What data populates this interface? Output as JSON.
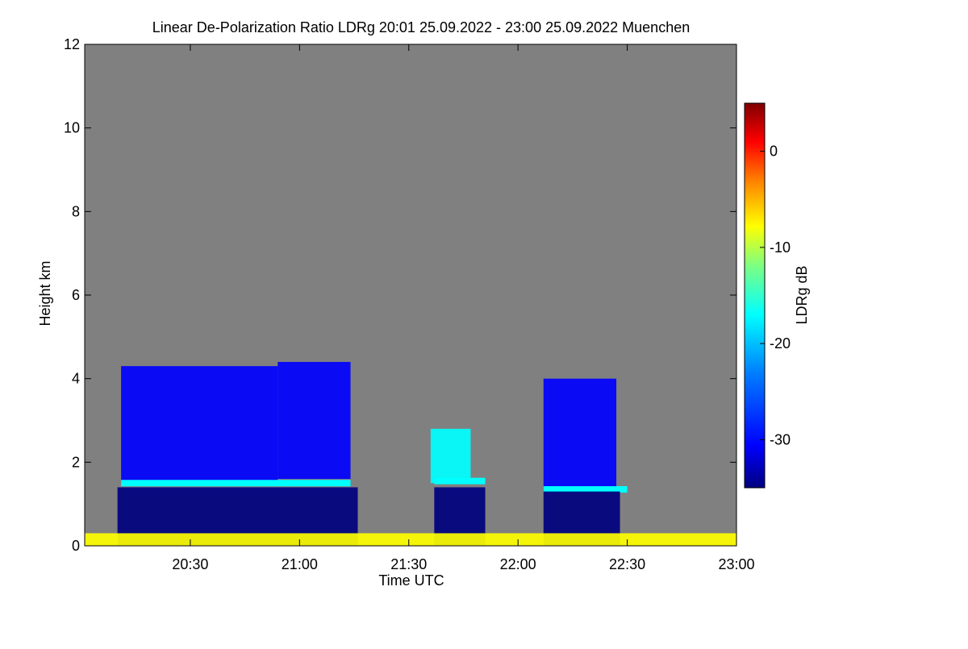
{
  "chart_data": {
    "type": "heatmap",
    "title": "Linear De-Polarization Ratio LDRg   20:01 25.09.2022 - 23:00 25.09.2022 Muenchen",
    "xlabel": "Time UTC",
    "ylabel": "Height km",
    "colorbar_label": "LDRg dB",
    "x_range_minutes_utc": [
      1201,
      1380
    ],
    "x_ticks": [
      {
        "label": "20:30",
        "value": 1230
      },
      {
        "label": "21:00",
        "value": 1260
      },
      {
        "label": "21:30",
        "value": 1290
      },
      {
        "label": "22:00",
        "value": 1320
      },
      {
        "label": "22:30",
        "value": 1350
      },
      {
        "label": "23:00",
        "value": 1380
      }
    ],
    "y_range_km": [
      0,
      12
    ],
    "y_ticks": [
      {
        "label": "0",
        "value": 0
      },
      {
        "label": "2",
        "value": 2
      },
      {
        "label": "4",
        "value": 4
      },
      {
        "label": "6",
        "value": 6
      },
      {
        "label": "8",
        "value": 8
      },
      {
        "label": "10",
        "value": 10
      },
      {
        "label": "12",
        "value": 12
      }
    ],
    "colorbar_range_db": [
      -35,
      5
    ],
    "colorbar_ticks": [
      {
        "label": "0",
        "value": 0
      },
      {
        "label": "-10",
        "value": -10
      },
      {
        "label": "-20",
        "value": -20
      },
      {
        "label": "-30",
        "value": -30
      }
    ],
    "colormap": [
      "#00007f",
      "#0000ff",
      "#007fff",
      "#00ffff",
      "#7fff7f",
      "#ffff00",
      "#ff7f00",
      "#ff0000",
      "#7f0000"
    ],
    "no_signal_color": "#808080",
    "features": [
      {
        "name": "cloud-mass-1",
        "t_start": 1211,
        "t_end": 1254,
        "h_bottom": 1.5,
        "h_top": 4.3,
        "ldr_db": -32
      },
      {
        "name": "cloud-mass-2",
        "t_start": 1254,
        "t_end": 1274,
        "h_bottom": 1.6,
        "h_top": 4.4,
        "ldr_db": -31
      },
      {
        "name": "cloud-mass-3",
        "t_start": 1327,
        "t_end": 1347,
        "h_bottom": 1.3,
        "h_top": 4.0,
        "ldr_db": -31
      },
      {
        "name": "cloud-patch-mid",
        "t_start": 1296,
        "t_end": 1307,
        "h_bottom": 1.5,
        "h_top": 2.8,
        "ldr_db": -22
      },
      {
        "name": "melting-layer-1",
        "t_start": 1211,
        "t_end": 1274,
        "height": 1.5,
        "ldr_db": -18
      },
      {
        "name": "melting-layer-2",
        "t_start": 1297,
        "t_end": 1311,
        "height": 1.55,
        "ldr_db": -18
      },
      {
        "name": "melting-layer-3",
        "t_start": 1327,
        "t_end": 1350,
        "height": 1.35,
        "ldr_db": -18
      },
      {
        "name": "precip-column-1",
        "t_start": 1210,
        "t_end": 1276,
        "h_bottom": 0,
        "h_top": 1.4,
        "ldr_db": -33
      },
      {
        "name": "precip-column-2",
        "t_start": 1297,
        "t_end": 1311,
        "h_bottom": 0,
        "h_top": 1.4,
        "ldr_db": -33
      },
      {
        "name": "precip-column-3",
        "t_start": 1327,
        "t_end": 1348,
        "h_bottom": 0,
        "h_top": 1.3,
        "ldr_db": -33
      },
      {
        "name": "near-surface-clutter",
        "t_start": 1201,
        "t_end": 1380,
        "h_bottom": 0,
        "h_top": 0.3,
        "ldr_db": -12
      }
    ]
  }
}
